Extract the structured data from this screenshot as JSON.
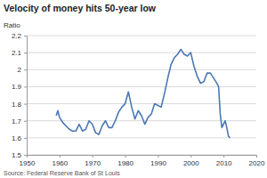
{
  "chart_data": {
    "type": "line",
    "title": "Velocity of money hits 50-year low",
    "ylabel": "Ratio",
    "source": "Source: Federal Reserve Bank of St Louis",
    "x": [
      1959,
      1959.5,
      1960,
      1961,
      1962,
      1963,
      1964,
      1965,
      1966,
      1967,
      1968,
      1969,
      1970,
      1971,
      1972,
      1973,
      1974,
      1975,
      1976,
      1977,
      1978,
      1979,
      1980,
      1981,
      1982,
      1983,
      1984,
      1985,
      1986,
      1987,
      1988,
      1989,
      1990,
      1991,
      1992,
      1993,
      1994,
      1995,
      1996,
      1997,
      1998,
      1999,
      2000,
      2001,
      2002,
      2003,
      2004,
      2005,
      2006,
      2007,
      2008,
      2008.5,
      2009,
      2009.5,
      2010,
      2010.5,
      2011,
      2011.5,
      2012
    ],
    "values": [
      1.73,
      1.76,
      1.72,
      1.69,
      1.67,
      1.65,
      1.64,
      1.64,
      1.68,
      1.64,
      1.65,
      1.7,
      1.68,
      1.63,
      1.62,
      1.67,
      1.7,
      1.66,
      1.66,
      1.7,
      1.75,
      1.78,
      1.8,
      1.87,
      1.78,
      1.71,
      1.76,
      1.73,
      1.68,
      1.72,
      1.74,
      1.8,
      1.79,
      1.78,
      1.86,
      1.95,
      2.03,
      2.07,
      2.09,
      2.12,
      2.09,
      2.08,
      2.1,
      2.02,
      1.96,
      1.92,
      1.93,
      1.98,
      1.98,
      1.95,
      1.92,
      1.9,
      1.74,
      1.66,
      1.68,
      1.7,
      1.66,
      1.61,
      1.6
    ],
    "color": "#4a78b5",
    "xlim": [
      1950,
      2020
    ],
    "xticks": [
      1950,
      1960,
      1970,
      1980,
      1990,
      2000,
      2010,
      2020
    ],
    "ylim": [
      1.5,
      2.2
    ],
    "yticks": [
      1.5,
      1.6,
      1.7,
      1.8,
      1.9,
      2.0,
      2.1,
      2.2
    ],
    "grid": true
  }
}
